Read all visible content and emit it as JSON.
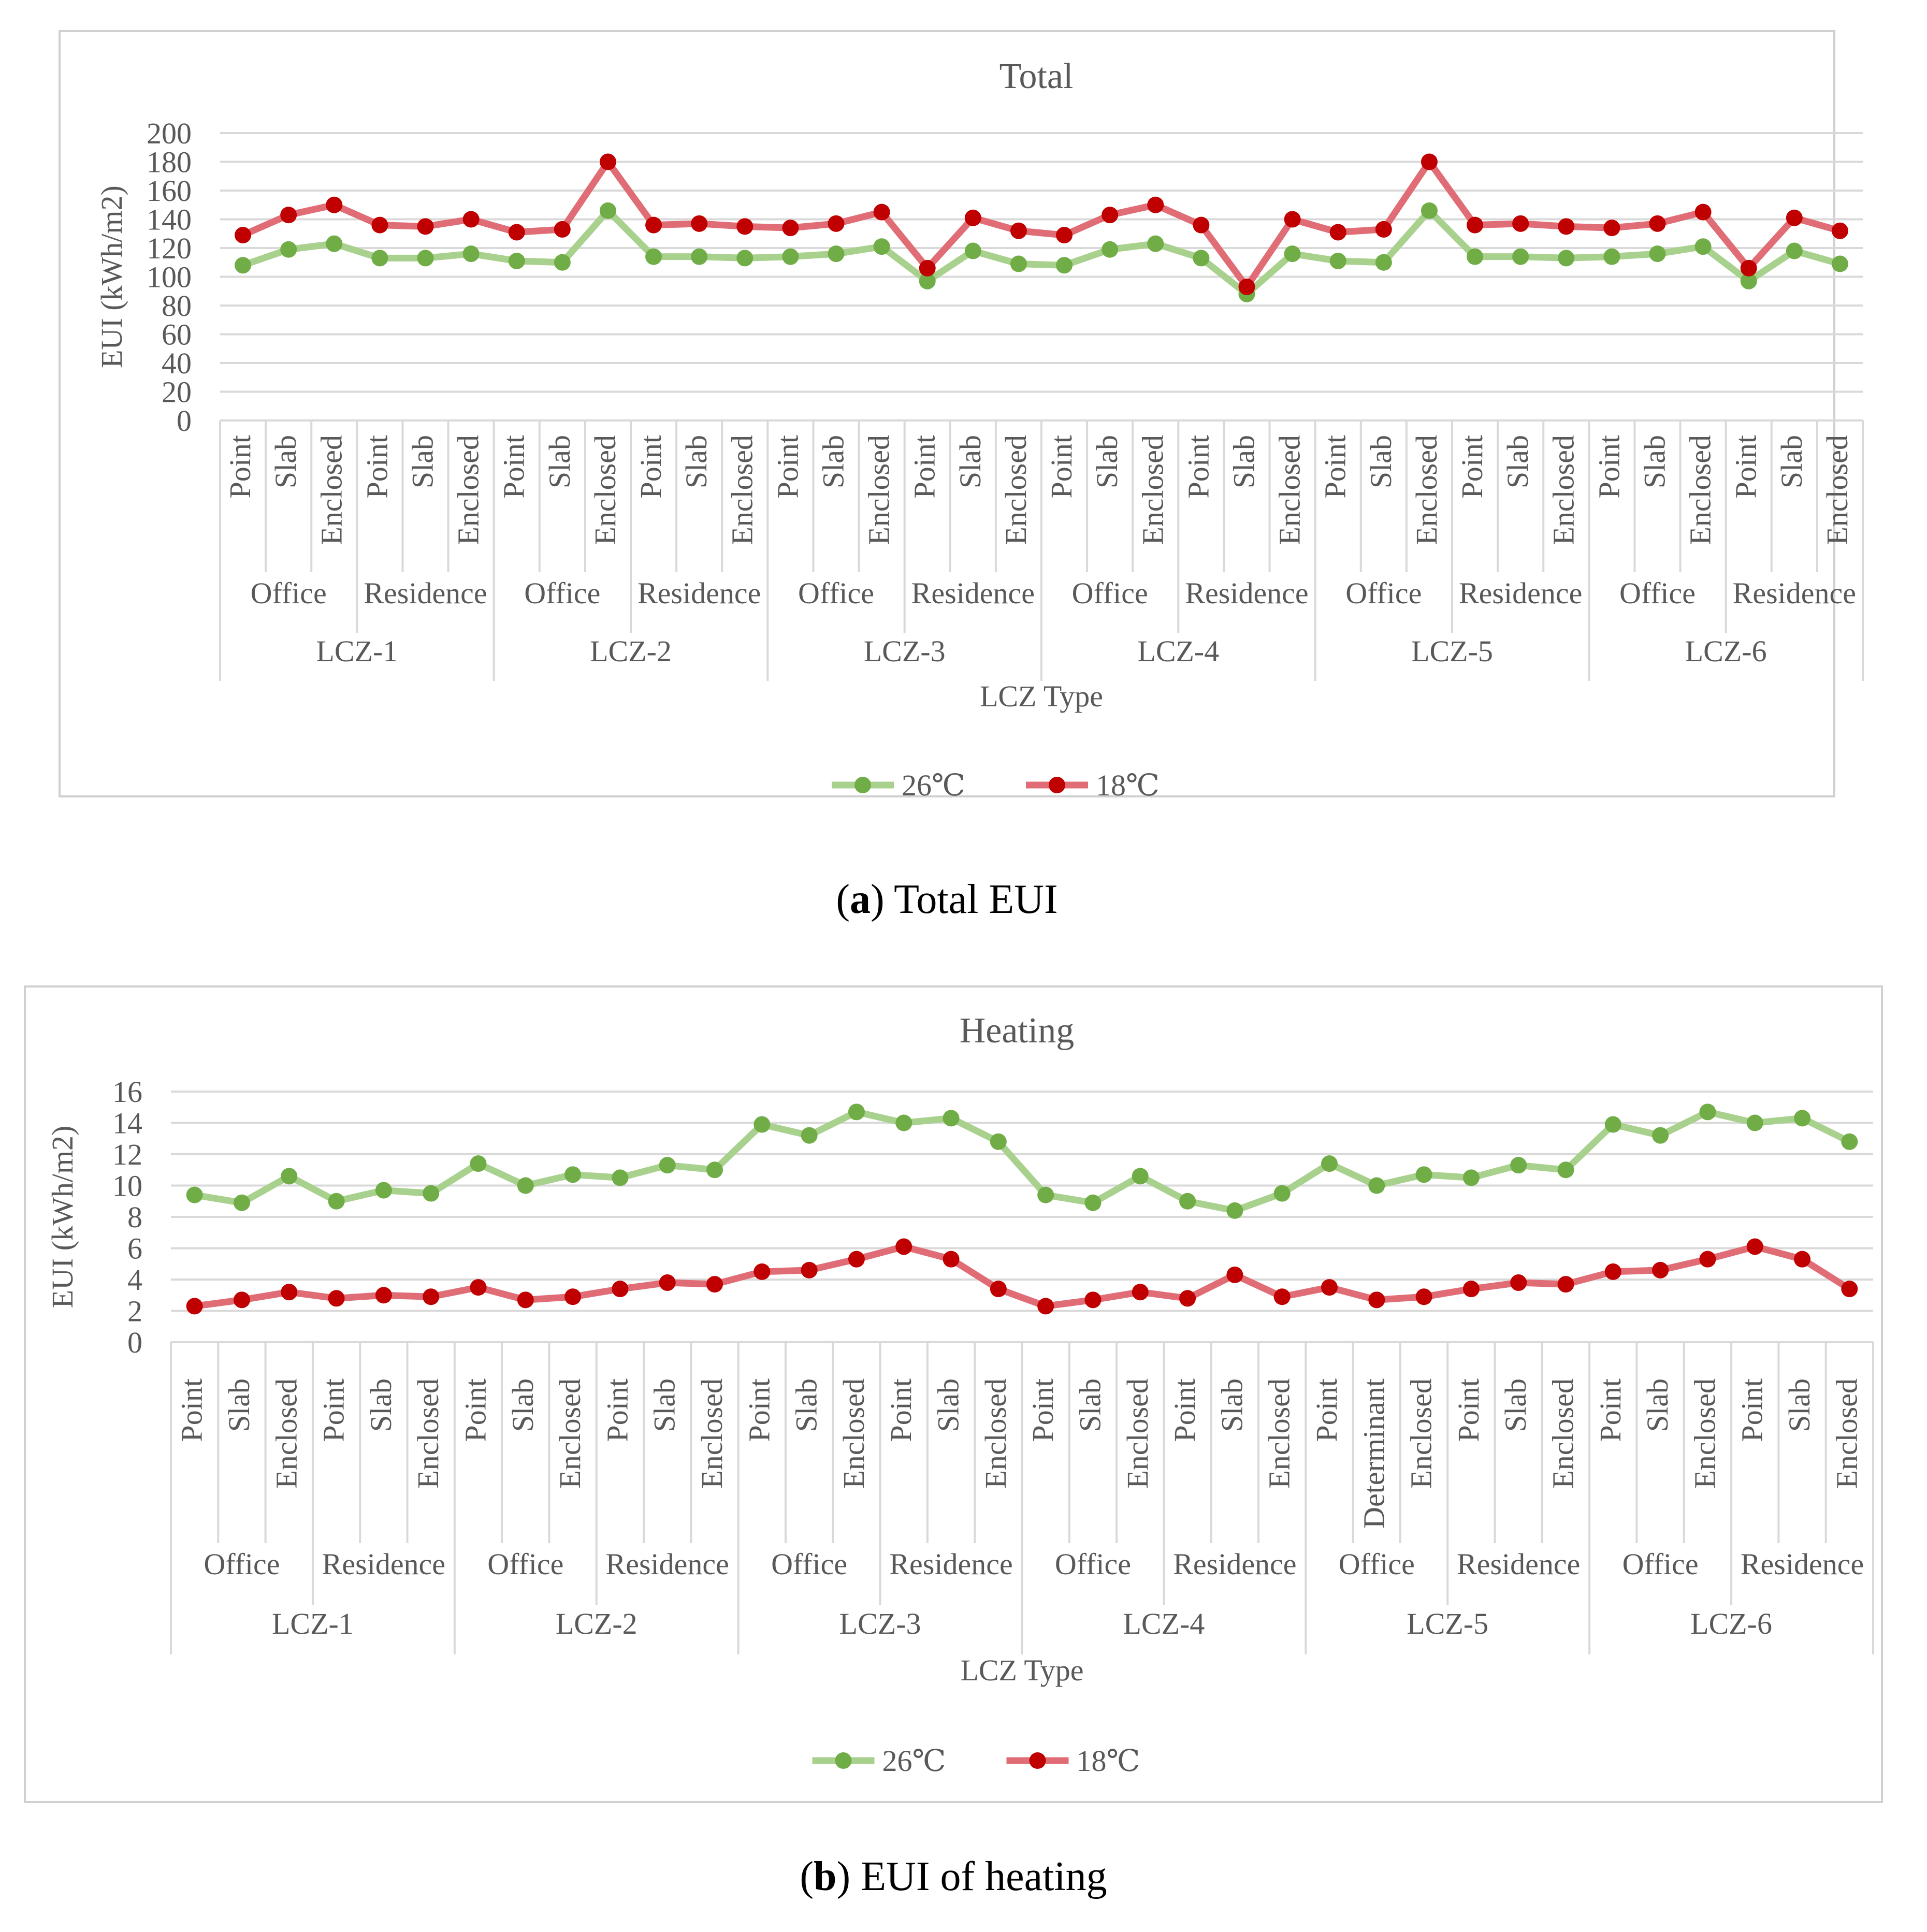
{
  "chart_data": [
    {
      "type": "line",
      "title": "Total",
      "xlabel": "LCZ Type",
      "ylabel": "EUI  (kWh/m2)",
      "ylim": [
        0,
        200
      ],
      "yticks": [
        0,
        20,
        40,
        60,
        80,
        100,
        120,
        140,
        160,
        180,
        200
      ],
      "grid": true,
      "legend": "bottom-center",
      "caption_bold": "a",
      "caption_text": ") Total EUI",
      "caption_open": "(",
      "groups": [
        "LCZ-1",
        "LCZ-2",
        "LCZ-3",
        "LCZ-4",
        "LCZ-5",
        "LCZ-6"
      ],
      "subgroups": [
        "Office",
        "Residence",
        "Office",
        "Residence",
        "Office",
        "Residence",
        "Office",
        "Residence",
        "Office",
        "Residence",
        "Office",
        "Residence"
      ],
      "categories": [
        "Point",
        "Slab",
        "Enclosed",
        "Point",
        "Slab",
        "Enclosed",
        "Point",
        "Slab",
        "Enclosed",
        "Point",
        "Slab",
        "Enclosed",
        "Point",
        "Slab",
        "Enclosed",
        "Point",
        "Slab",
        "Enclosed",
        "Point",
        "Slab",
        "Enclosed",
        "Point",
        "Slab",
        "Enclosed",
        "Point",
        "Slab",
        "Enclosed",
        "Point",
        "Slab",
        "Enclosed",
        "Point",
        "Slab",
        "Enclosed",
        "Point",
        "Slab",
        "Enclosed"
      ],
      "series": [
        {
          "name": "26℃",
          "color": "#a9d18e",
          "marker": "#70ad47",
          "values": [
            108,
            119,
            123,
            113,
            113,
            116,
            111,
            110,
            146,
            114,
            114,
            113,
            114,
            116,
            121,
            97,
            118,
            109,
            108,
            119,
            123,
            113,
            88,
            116,
            111,
            110,
            146,
            114,
            114,
            113,
            114,
            116,
            121,
            97,
            118,
            109
          ]
        },
        {
          "name": "18℃",
          "color": "#e06c75",
          "marker": "#c00000",
          "values": [
            129,
            143,
            150,
            136,
            135,
            140,
            131,
            133,
            180,
            136,
            137,
            135,
            134,
            137,
            145,
            106,
            141,
            132,
            129,
            143,
            150,
            136,
            93,
            140,
            131,
            133,
            180,
            136,
            137,
            135,
            134,
            137,
            145,
            106,
            141,
            132
          ]
        }
      ]
    },
    {
      "type": "line",
      "title": "Heating",
      "xlabel": "LCZ Type",
      "ylabel": "EUI  (kWh/m2)",
      "ylim": [
        0,
        16
      ],
      "yticks": [
        0,
        2,
        4,
        6,
        8,
        10,
        12,
        14,
        16
      ],
      "grid": true,
      "legend": "bottom-center",
      "caption_bold": "b",
      "caption_text": ") EUI of heating",
      "caption_open": "(",
      "groups": [
        "LCZ-1",
        "LCZ-2",
        "LCZ-3",
        "LCZ-4",
        "LCZ-5",
        "LCZ-6"
      ],
      "subgroups": [
        "Office",
        "Residence",
        "Office",
        "Residence",
        "Office",
        "Residence",
        "Office",
        "Residence",
        "Office",
        "Residence",
        "Office",
        "Residence"
      ],
      "categories": [
        "Point",
        "Slab",
        "Enclosed",
        "Point",
        "Slab",
        "Enclosed",
        "Point",
        "Slab",
        "Enclosed",
        "Point",
        "Slab",
        "Enclosed",
        "Point",
        "Slab",
        "Enclosed",
        "Point",
        "Slab",
        "Enclosed",
        "Point",
        "Slab",
        "Enclosed",
        "Point",
        "Slab",
        "Enclosed",
        "Point",
        "Determinant",
        "Enclosed",
        "Point",
        "Slab",
        "Enclosed",
        "Point",
        "Slab",
        "Enclosed",
        "Point",
        "Slab",
        "Enclosed"
      ],
      "series": [
        {
          "name": "26℃",
          "color": "#a9d18e",
          "marker": "#70ad47",
          "values": [
            9.4,
            8.9,
            10.6,
            9.0,
            9.7,
            9.5,
            11.4,
            10.0,
            10.7,
            10.5,
            11.3,
            11.0,
            13.9,
            13.2,
            14.7,
            14.0,
            14.3,
            12.8,
            9.4,
            8.9,
            10.6,
            9.0,
            8.4,
            9.5,
            11.4,
            10.0,
            10.7,
            10.5,
            11.3,
            11.0,
            13.9,
            13.2,
            14.7,
            14.0,
            14.3,
            12.8
          ]
        },
        {
          "name": "18℃",
          "color": "#e06c75",
          "marker": "#c00000",
          "values": [
            2.3,
            2.7,
            3.2,
            2.8,
            3.0,
            2.9,
            3.5,
            2.7,
            2.9,
            3.4,
            3.8,
            3.7,
            4.5,
            4.6,
            5.3,
            6.1,
            5.3,
            3.4,
            2.3,
            2.7,
            3.2,
            2.8,
            4.3,
            2.9,
            3.5,
            2.7,
            2.9,
            3.4,
            3.8,
            3.7,
            4.5,
            4.6,
            5.3,
            6.1,
            5.3,
            3.4
          ]
        }
      ]
    }
  ]
}
